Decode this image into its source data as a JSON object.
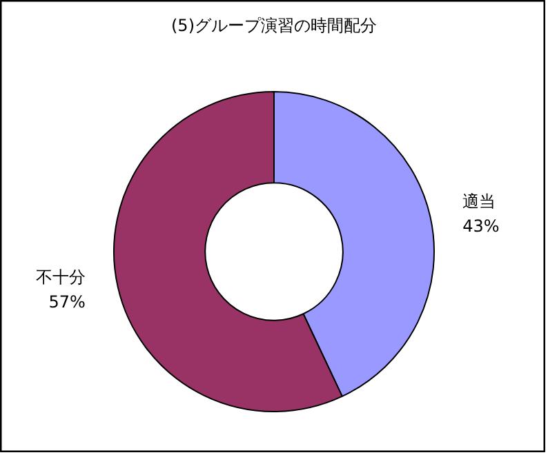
{
  "chart_data": {
    "type": "donut",
    "title": "(5)グループ演習の時間配分",
    "categories": [
      "適当",
      "不十分"
    ],
    "values": [
      43,
      57
    ],
    "value_labels": [
      "43%",
      "57%"
    ],
    "colors": [
      "#9999ff",
      "#993366"
    ]
  }
}
